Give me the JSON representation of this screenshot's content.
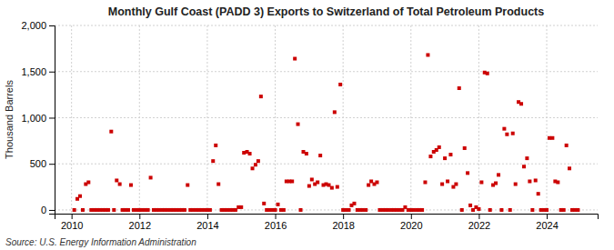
{
  "chart_data": {
    "type": "scatter",
    "title": "Monthly Gulf Coast (PADD 3) Exports to Switzerland of Total Petroleum Products",
    "ylabel": "Thousand Barrels",
    "annotations": [
      "Source: U.S. Energy Information Administration"
    ],
    "color": "#cc0000",
    "marker": "square",
    "grid": true,
    "xlim": [
      2009.5,
      2025.5
    ],
    "ylim": [
      -40,
      2000
    ],
    "xticks": [
      2010,
      2012,
      2014,
      2016,
      2018,
      2020,
      2022,
      2024
    ],
    "yticks": [
      0,
      500,
      {
        "value": 1000,
        "label": "1,000"
      },
      {
        "value": 1500,
        "label": "1,500"
      },
      {
        "value": 2000,
        "label": "2,000"
      }
    ],
    "x": [
      2010.08,
      2010.17,
      2010.25,
      2010.33,
      2010.42,
      2010.5,
      2010.58,
      2010.67,
      2010.75,
      2010.83,
      2010.92,
      2011.0,
      2011.08,
      2011.17,
      2011.25,
      2011.33,
      2011.42,
      2011.5,
      2011.58,
      2011.67,
      2011.75,
      2011.83,
      2011.92,
      2012.0,
      2012.08,
      2012.17,
      2012.25,
      2012.33,
      2012.42,
      2012.5,
      2012.58,
      2012.67,
      2012.75,
      2012.83,
      2012.92,
      2013.0,
      2013.08,
      2013.17,
      2013.25,
      2013.33,
      2013.42,
      2013.5,
      2013.58,
      2013.67,
      2013.75,
      2013.83,
      2013.92,
      2014.0,
      2014.08,
      2014.17,
      2014.25,
      2014.33,
      2014.42,
      2014.5,
      2014.58,
      2014.67,
      2014.75,
      2014.83,
      2014.92,
      2015.0,
      2015.08,
      2015.17,
      2015.25,
      2015.33,
      2015.42,
      2015.5,
      2015.58,
      2015.67,
      2015.75,
      2015.83,
      2015.92,
      2016.0,
      2016.08,
      2016.17,
      2016.25,
      2016.33,
      2016.42,
      2016.5,
      2016.58,
      2016.67,
      2016.75,
      2016.83,
      2016.92,
      2017.0,
      2017.08,
      2017.17,
      2017.25,
      2017.33,
      2017.42,
      2017.5,
      2017.58,
      2017.67,
      2017.75,
      2017.83,
      2017.92,
      2018.0,
      2018.08,
      2018.17,
      2018.25,
      2018.33,
      2018.42,
      2018.5,
      2018.58,
      2018.67,
      2018.75,
      2018.83,
      2018.92,
      2019.0,
      2019.08,
      2019.17,
      2019.25,
      2019.33,
      2019.42,
      2019.5,
      2019.58,
      2019.67,
      2019.75,
      2019.83,
      2019.92,
      2020.0,
      2020.08,
      2020.17,
      2020.25,
      2020.33,
      2020.42,
      2020.5,
      2020.58,
      2020.67,
      2020.75,
      2020.83,
      2020.92,
      2021.0,
      2021.08,
      2021.17,
      2021.25,
      2021.33,
      2021.42,
      2021.5,
      2021.58,
      2021.67,
      2021.75,
      2021.83,
      2021.92,
      2022.0,
      2022.08,
      2022.17,
      2022.25,
      2022.33,
      2022.42,
      2022.5,
      2022.58,
      2022.67,
      2022.75,
      2022.83,
      2022.92,
      2023.0,
      2023.08,
      2023.17,
      2023.25,
      2023.33,
      2023.42,
      2023.5,
      2023.58,
      2023.67,
      2023.75,
      2023.83,
      2023.92,
      2024.0,
      2024.08,
      2024.17,
      2024.25,
      2024.33,
      2024.42,
      2024.5,
      2024.58,
      2024.67,
      2024.75,
      2024.83,
      2024.92
    ],
    "values": [
      0,
      120,
      150,
      0,
      280,
      300,
      0,
      0,
      0,
      0,
      0,
      0,
      0,
      850,
      0,
      320,
      280,
      0,
      0,
      0,
      270,
      0,
      0,
      0,
      0,
      0,
      0,
      350,
      0,
      0,
      0,
      0,
      0,
      0,
      0,
      0,
      0,
      0,
      0,
      0,
      270,
      0,
      0,
      0,
      0,
      0,
      0,
      0,
      0,
      530,
      700,
      280,
      0,
      0,
      0,
      0,
      0,
      0,
      30,
      30,
      620,
      630,
      610,
      450,
      490,
      530,
      1230,
      70,
      0,
      0,
      0,
      0,
      60,
      0,
      0,
      310,
      310,
      310,
      1640,
      930,
      0,
      630,
      610,
      260,
      330,
      280,
      300,
      590,
      270,
      280,
      270,
      240,
      1060,
      250,
      1360,
      0,
      0,
      0,
      50,
      70,
      0,
      0,
      0,
      0,
      270,
      310,
      280,
      300,
      0,
      0,
      0,
      0,
      0,
      0,
      0,
      0,
      0,
      30,
      0,
      0,
      0,
      0,
      0,
      0,
      300,
      1680,
      580,
      630,
      650,
      680,
      280,
      560,
      310,
      600,
      250,
      280,
      1320,
      0,
      670,
      400,
      50,
      0,
      30,
      10,
      300,
      1490,
      1480,
      0,
      270,
      290,
      380,
      0,
      880,
      820,
      0,
      830,
      280,
      1170,
      1150,
      470,
      560,
      310,
      0,
      320,
      175,
      0,
      0,
      0,
      780,
      780,
      310,
      300,
      0,
      0,
      700,
      450,
      0,
      0,
      0
    ]
  }
}
